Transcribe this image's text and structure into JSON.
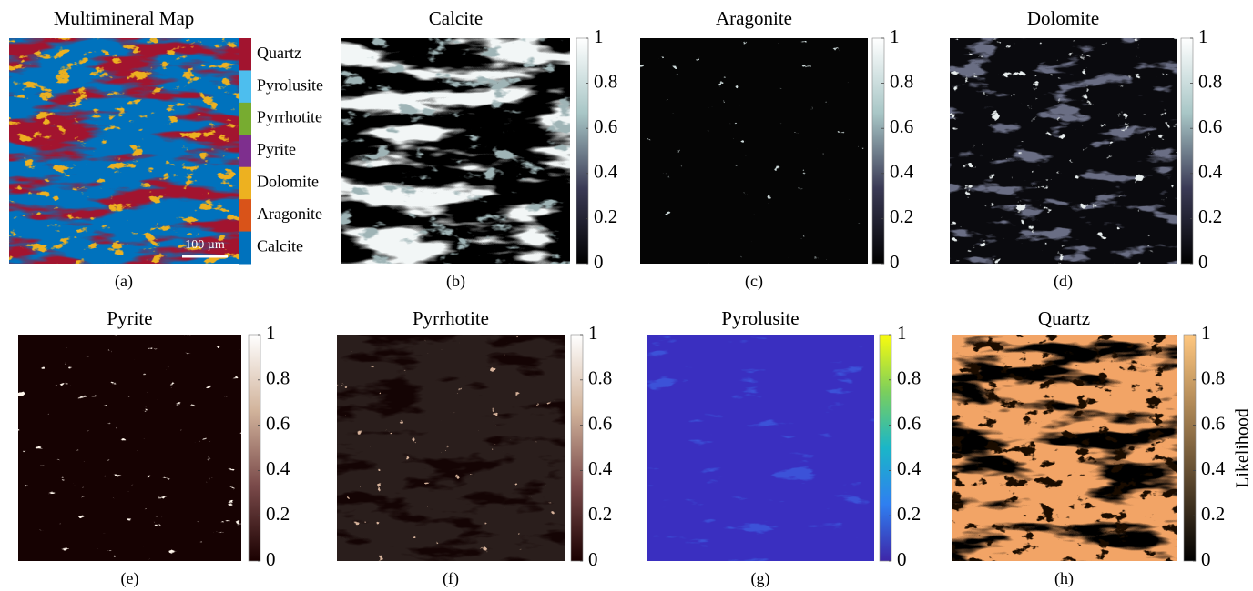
{
  "panels": [
    {
      "title": "Multimineral Map",
      "label": "(a)",
      "scale_bar": "100 µm",
      "legend": [
        "Quartz",
        "Pyrolusite",
        "Pyrrhotite",
        "Pyrite",
        "Dolomite",
        "Aragonite",
        "Calcite"
      ],
      "legend_colors": [
        "#a2142f",
        "#4dbeee",
        "#77ac30",
        "#7e2f8e",
        "#edb120",
        "#d95319",
        "#0072bd"
      ]
    },
    {
      "title": "Calcite",
      "label": "(b)",
      "colorbar_ticks": [
        0,
        0.2,
        0.4,
        0.6,
        0.8,
        1
      ],
      "colormap": [
        "#000000",
        "#3a3a55",
        "#a8c6c6",
        "#ffffff"
      ]
    },
    {
      "title": "Aragonite",
      "label": "(c)",
      "colorbar_ticks": [
        0,
        0.2,
        0.4,
        0.6,
        0.8,
        1
      ],
      "colormap": [
        "#000000",
        "#3a3a55",
        "#a8c6c6",
        "#ffffff"
      ]
    },
    {
      "title": "Dolomite",
      "label": "(d)",
      "colorbar_ticks": [
        0,
        0.2,
        0.4,
        0.6,
        0.8,
        1
      ],
      "colormap": [
        "#000000",
        "#3a3a55",
        "#a8c6c6",
        "#ffffff"
      ]
    },
    {
      "title": "Pyrite",
      "label": "(e)",
      "colorbar_ticks": [
        0,
        0.2,
        0.4,
        0.6,
        0.8,
        1
      ],
      "colormap": [
        "#1a0000",
        "#7a4a4a",
        "#d2b49c",
        "#ffffff"
      ]
    },
    {
      "title": "Pyrrhotite",
      "label": "(f)",
      "colorbar_ticks": [
        0,
        0.2,
        0.4,
        0.6,
        0.8,
        1
      ],
      "colormap": [
        "#1a0000",
        "#7a4a4a",
        "#d2b49c",
        "#ffffff"
      ]
    },
    {
      "title": "Pyrolusite",
      "label": "(g)",
      "colorbar_ticks": [
        0,
        0.2,
        0.4,
        0.6,
        0.8,
        1
      ],
      "colormap": [
        "#3e26a8",
        "#2f7ff0",
        "#1ab6c8",
        "#7ccf5c",
        "#f9fb0e"
      ]
    },
    {
      "title": "Quartz",
      "label": "(h)",
      "colorbar_ticks": [
        0,
        0.2,
        0.4,
        0.6,
        0.8,
        1
      ],
      "colormap": [
        "#000000",
        "#ffc77f"
      ]
    }
  ],
  "colorbar_label": "Likelihood"
}
